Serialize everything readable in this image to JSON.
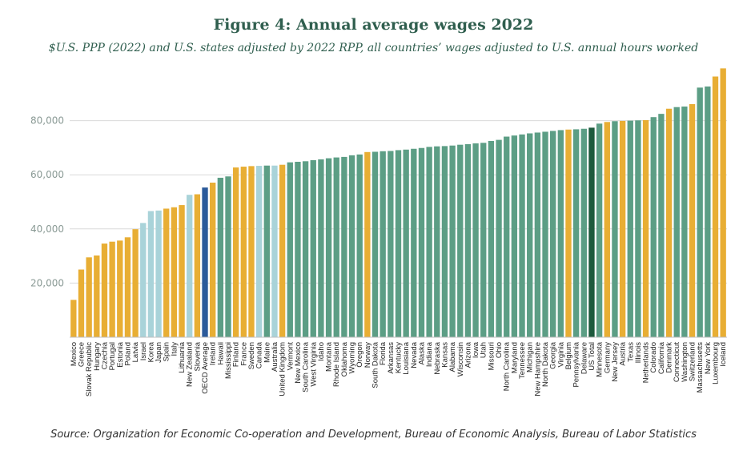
{
  "chart_data": {
    "type": "bar",
    "title": "Figure 4: Annual average wages 2022",
    "subtitle": "$U.S. PPP (2022) and U.S. states adjusted by 2022 RPP, all countries’ wages adjusted to U.S. annual hours worked",
    "source": "Source: Organization for Economic Co-operation and Development, Bureau of Economic Analysis, Bureau of Labor Statistics",
    "xlabel": "",
    "ylabel": "",
    "ylim": [
      0,
      100000
    ],
    "yticks": [
      20000,
      40000,
      60000,
      80000
    ],
    "ytick_labels": [
      "20,000",
      "40,000",
      "60,000",
      "80,000"
    ],
    "grid": true,
    "legend": "none",
    "colors": {
      "oecd_country": "#e8ae34",
      "non_member_country": "#a9d3d9",
      "us_state": "#5c9e85",
      "oecd_average": "#2b5a9a",
      "us_total": "#1d5a3d",
      "grid": "#d9d9d9"
    },
    "categories": [
      "Mexico",
      "Greece",
      "Slovak Republic",
      "Hungary",
      "Czechia",
      "Portugal",
      "Estonia",
      "Poland",
      "Latvia",
      "Israel",
      "Korea",
      "Japan",
      "Spain",
      "Italy",
      "Lithuania",
      "New Zealand",
      "Slovenia",
      "OECD Average",
      "Ireland",
      "Hawaii",
      "Mississippi",
      "Finland",
      "France",
      "Sweden",
      "Canada",
      "Maine",
      "Australia",
      "United Kingdom",
      "Vermont",
      "New Mexico",
      "South Carolina",
      "West Virginia",
      "Idaho",
      "Montana",
      "Rhode Island",
      "Oklahoma",
      "Wyoming",
      "Oregon",
      "Norway",
      "South Dakota",
      "Florida",
      "Arkansas",
      "Kentucky",
      "Louisiana",
      "Nevada",
      "Alaska",
      "Indiana",
      "Nebraska",
      "Kansas",
      "Alabama",
      "Wisconsin",
      "Arizona",
      "Iowa",
      "Utah",
      "Missouri",
      "Ohio",
      "North Carolina",
      "Maryland",
      "Tennessee",
      "Michigan",
      "New Hampshire",
      "North Dakota",
      "Georgia",
      "Virginia",
      "Belgium",
      "Pennsylvania",
      "Delaware",
      "US Total",
      "Minnesota",
      "Germany",
      "New Jersey",
      "Austria",
      "Texas",
      "Illinois",
      "Netherlands",
      "Colorado",
      "California",
      "Denmark",
      "Connecticut",
      "Washington",
      "Switzerland",
      "Massachusetts",
      "New York",
      "Luxembourg",
      "Iceland"
    ],
    "values": [
      13800,
      25000,
      29500,
      30200,
      34600,
      35300,
      35700,
      36900,
      39900,
      42200,
      46600,
      46800,
      47500,
      48000,
      48800,
      52600,
      52800,
      55300,
      57100,
      58900,
      59400,
      62700,
      63000,
      63200,
      63300,
      63400,
      63400,
      63700,
      64600,
      64800,
      65000,
      65400,
      65700,
      66100,
      66400,
      66600,
      67200,
      67500,
      68400,
      68500,
      68700,
      68800,
      69100,
      69300,
      69600,
      69900,
      70300,
      70500,
      70600,
      70800,
      71100,
      71300,
      71600,
      71800,
      72500,
      72900,
      74100,
      74500,
      74900,
      75300,
      75600,
      75900,
      76200,
      76500,
      76700,
      76800,
      77000,
      77400,
      78900,
      79500,
      79800,
      79900,
      80000,
      80100,
      80200,
      81300,
      82500,
      84400,
      85000,
      85200,
      86100,
      92200,
      92600,
      96300,
      99300
    ],
    "groups": [
      "oecd_country",
      "oecd_country",
      "oecd_country",
      "oecd_country",
      "oecd_country",
      "oecd_country",
      "oecd_country",
      "oecd_country",
      "oecd_country",
      "non_member_country",
      "non_member_country",
      "non_member_country",
      "oecd_country",
      "oecd_country",
      "oecd_country",
      "non_member_country",
      "oecd_country",
      "oecd_average",
      "oecd_country",
      "us_state",
      "us_state",
      "oecd_country",
      "oecd_country",
      "oecd_country",
      "non_member_country",
      "us_state",
      "non_member_country",
      "oecd_country",
      "us_state",
      "us_state",
      "us_state",
      "us_state",
      "us_state",
      "us_state",
      "us_state",
      "us_state",
      "us_state",
      "us_state",
      "oecd_country",
      "us_state",
      "us_state",
      "us_state",
      "us_state",
      "us_state",
      "us_state",
      "us_state",
      "us_state",
      "us_state",
      "us_state",
      "us_state",
      "us_state",
      "us_state",
      "us_state",
      "us_state",
      "us_state",
      "us_state",
      "us_state",
      "us_state",
      "us_state",
      "us_state",
      "us_state",
      "us_state",
      "us_state",
      "us_state",
      "oecd_country",
      "us_state",
      "us_state",
      "us_total",
      "us_state",
      "oecd_country",
      "us_state",
      "oecd_country",
      "us_state",
      "us_state",
      "oecd_country",
      "us_state",
      "us_state",
      "oecd_country",
      "us_state",
      "us_state",
      "oecd_country",
      "us_state",
      "us_state",
      "oecd_country",
      "oecd_country"
    ]
  }
}
